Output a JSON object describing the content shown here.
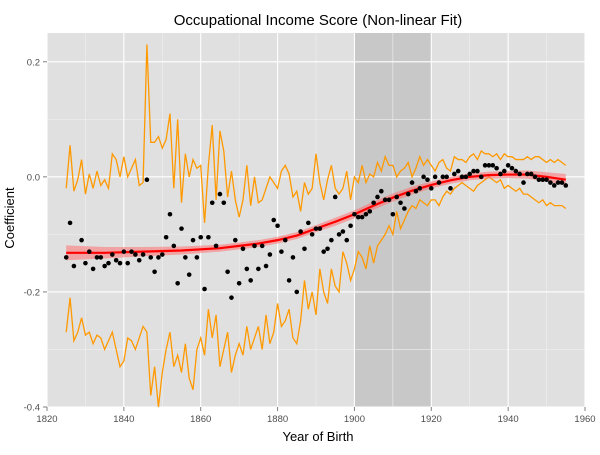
{
  "chart_data": {
    "type": "scatter",
    "title": "Occupational Income Score (Non-linear Fit)",
    "xlabel": "Year of Birth",
    "ylabel": "Coefficient",
    "xlim": [
      1820,
      1960
    ],
    "ylim": [
      -0.4,
      0.25
    ],
    "x_ticks": [
      1820,
      1840,
      1860,
      1880,
      1900,
      1920,
      1940,
      1960
    ],
    "y_ticks": [
      -0.4,
      -0.2,
      0.0,
      0.2
    ],
    "x_tick_labels": [
      "1820",
      "1840",
      "1860",
      "1880",
      "1900",
      "1920",
      "1940",
      "1960"
    ],
    "y_tick_labels": [
      "-0.4",
      "-0.2",
      "0.0",
      "0.2"
    ],
    "grid": true,
    "shaded_region": {
      "x0": 1900,
      "x1": 1920
    },
    "colors": {
      "panel": "#e0e0e0",
      "shade": "#c8c8c8",
      "grid": "#ffffff",
      "points": "#000000",
      "ci_lines": "#ff9900",
      "fit_line": "#ff0000",
      "fit_band": "#ff7070"
    },
    "series": [
      {
        "kind": "points",
        "x": [
          1825,
          1826,
          1827,
          1829,
          1830,
          1831,
          1832,
          1833,
          1834,
          1835,
          1836,
          1837,
          1838,
          1839,
          1840,
          1841,
          1842,
          1843,
          1844,
          1845,
          1846,
          1847,
          1848,
          1849,
          1850,
          1851,
          1852,
          1853,
          1854,
          1855,
          1856,
          1857,
          1858,
          1859,
          1860,
          1861,
          1862,
          1863,
          1864,
          1865,
          1866,
          1867,
          1868,
          1869,
          1870,
          1871,
          1872,
          1873,
          1874,
          1875,
          1876,
          1877,
          1878,
          1879,
          1880,
          1881,
          1882,
          1883,
          1884,
          1885,
          1886,
          1887,
          1888,
          1889,
          1890,
          1891,
          1892,
          1893,
          1894,
          1895,
          1896,
          1897,
          1898,
          1899,
          1900,
          1901,
          1902,
          1903,
          1904,
          1905,
          1906,
          1907,
          1908,
          1909,
          1910,
          1911,
          1912,
          1913,
          1914,
          1915,
          1916,
          1917,
          1918,
          1919,
          1920,
          1921,
          1922,
          1923,
          1924,
          1925,
          1926,
          1927,
          1928,
          1929,
          1930,
          1931,
          1932,
          1933,
          1934,
          1935,
          1936,
          1937,
          1938,
          1939,
          1940,
          1941,
          1942,
          1943,
          1944,
          1945,
          1946,
          1947,
          1948,
          1949,
          1950,
          1951,
          1952,
          1953,
          1954,
          1955
        ],
        "y": [
          -0.14,
          -0.08,
          -0.155,
          -0.11,
          -0.15,
          -0.13,
          -0.16,
          -0.14,
          -0.14,
          -0.155,
          -0.15,
          -0.135,
          -0.145,
          -0.15,
          -0.13,
          -0.15,
          -0.13,
          -0.135,
          -0.145,
          -0.135,
          -0.005,
          -0.14,
          -0.165,
          -0.14,
          -0.135,
          -0.105,
          -0.065,
          -0.12,
          -0.185,
          -0.09,
          -0.14,
          -0.17,
          -0.11,
          -0.14,
          -0.105,
          -0.195,
          -0.105,
          -0.045,
          -0.12,
          -0.03,
          -0.045,
          -0.165,
          -0.21,
          -0.11,
          -0.185,
          -0.125,
          -0.16,
          -0.18,
          -0.12,
          -0.16,
          -0.12,
          -0.155,
          -0.135,
          -0.075,
          -0.085,
          -0.13,
          -0.11,
          -0.18,
          -0.14,
          -0.2,
          -0.095,
          -0.125,
          -0.08,
          -0.1,
          -0.09,
          -0.09,
          -0.13,
          -0.125,
          -0.11,
          -0.035,
          -0.1,
          -0.095,
          -0.11,
          -0.085,
          -0.065,
          -0.07,
          -0.07,
          -0.065,
          -0.06,
          -0.045,
          -0.035,
          -0.025,
          -0.04,
          -0.04,
          -0.065,
          -0.035,
          -0.045,
          -0.055,
          -0.03,
          -0.01,
          -0.025,
          -0.02,
          0.0,
          -0.005,
          -0.02,
          0.0,
          -0.01,
          0.0,
          0.0,
          -0.02,
          0.005,
          0.01,
          0.0,
          0.0,
          0.005,
          0.01,
          0.01,
          0.0,
          0.02,
          0.02,
          0.02,
          0.015,
          0.005,
          0.01,
          0.02,
          0.015,
          0.01,
          0.005,
          -0.01,
          0.005,
          0.005,
          0.0,
          -0.005,
          -0.005,
          -0.005,
          -0.01,
          -0.015,
          -0.01,
          -0.01,
          -0.015
        ]
      },
      {
        "kind": "upper_ci",
        "x": [
          1825,
          1826,
          1827,
          1828,
          1829,
          1830,
          1831,
          1832,
          1833,
          1834,
          1835,
          1836,
          1837,
          1838,
          1839,
          1840,
          1841,
          1842,
          1843,
          1844,
          1845,
          1846,
          1847,
          1848,
          1849,
          1850,
          1851,
          1852,
          1853,
          1854,
          1855,
          1856,
          1857,
          1858,
          1859,
          1860,
          1861,
          1862,
          1863,
          1864,
          1865,
          1866,
          1867,
          1868,
          1869,
          1870,
          1871,
          1872,
          1873,
          1874,
          1875,
          1876,
          1877,
          1878,
          1879,
          1880,
          1881,
          1882,
          1883,
          1884,
          1885,
          1886,
          1887,
          1888,
          1889,
          1890,
          1891,
          1892,
          1893,
          1894,
          1895,
          1896,
          1897,
          1898,
          1899,
          1900,
          1901,
          1902,
          1903,
          1904,
          1905,
          1906,
          1907,
          1908,
          1909,
          1910,
          1911,
          1912,
          1913,
          1914,
          1915,
          1916,
          1917,
          1918,
          1919,
          1920,
          1921,
          1922,
          1923,
          1924,
          1925,
          1926,
          1927,
          1928,
          1929,
          1930,
          1931,
          1932,
          1933,
          1934,
          1935,
          1936,
          1937,
          1938,
          1939,
          1940,
          1941,
          1942,
          1943,
          1944,
          1945,
          1946,
          1947,
          1948,
          1949,
          1950,
          1951,
          1952,
          1953,
          1954,
          1955
        ],
        "y": [
          -0.02,
          0.055,
          -0.025,
          -0.005,
          0.03,
          -0.03,
          0.005,
          -0.02,
          0.01,
          -0.015,
          -0.005,
          -0.02,
          0.04,
          0.03,
          0.0,
          0.035,
          0.0,
          0.015,
          0.03,
          -0.015,
          -0.01,
          0.23,
          0.06,
          0.06,
          0.07,
          0.05,
          0.065,
          0.11,
          -0.02,
          0.1,
          -0.045,
          0.04,
          0.0,
          0.03,
          0.015,
          0.02,
          -0.08,
          0.02,
          0.09,
          -0.04,
          0.08,
          0.045,
          -0.035,
          0.01,
          -0.04,
          -0.07,
          -0.04,
          0.02,
          -0.05,
          0.0,
          -0.045,
          -0.04,
          -0.02,
          0.0,
          -0.01,
          -0.02,
          0.01,
          0.02,
          0.005,
          -0.035,
          -0.025,
          -0.06,
          -0.01,
          -0.03,
          -0.02,
          0.04,
          -0.01,
          -0.04,
          -0.005,
          0.02,
          -0.02,
          -0.03,
          -0.02,
          0.01,
          -0.04,
          0.0,
          -0.01,
          0.02,
          -0.01,
          0.005,
          0.0,
          0.025,
          0.01,
          0.035,
          0.02,
          0.02,
          0.0,
          0.01,
          0.015,
          0.025,
          0.0,
          0.015,
          0.035,
          0.02,
          0.03,
          0.02,
          0.01,
          0.025,
          0.03,
          0.015,
          0.01,
          0.035,
          0.03,
          0.03,
          0.025,
          0.035,
          0.04,
          0.03,
          0.045,
          0.04,
          0.04,
          0.035,
          0.04,
          0.03,
          0.04,
          0.035,
          0.035,
          0.03,
          0.03,
          0.03,
          0.035,
          0.03,
          0.035,
          0.035,
          0.03,
          0.025,
          0.03,
          0.025,
          0.03,
          0.025,
          0.02
        ]
      },
      {
        "kind": "lower_ci",
        "x": [
          1825,
          1826,
          1827,
          1828,
          1829,
          1830,
          1831,
          1832,
          1833,
          1834,
          1835,
          1836,
          1837,
          1838,
          1839,
          1840,
          1841,
          1842,
          1843,
          1844,
          1845,
          1846,
          1847,
          1848,
          1849,
          1850,
          1851,
          1852,
          1853,
          1854,
          1855,
          1856,
          1857,
          1858,
          1859,
          1860,
          1861,
          1862,
          1863,
          1864,
          1865,
          1866,
          1867,
          1868,
          1869,
          1870,
          1871,
          1872,
          1873,
          1874,
          1875,
          1876,
          1877,
          1878,
          1879,
          1880,
          1881,
          1882,
          1883,
          1884,
          1885,
          1886,
          1887,
          1888,
          1889,
          1890,
          1891,
          1892,
          1893,
          1894,
          1895,
          1896,
          1897,
          1898,
          1899,
          1900,
          1901,
          1902,
          1903,
          1904,
          1905,
          1906,
          1907,
          1908,
          1909,
          1910,
          1911,
          1912,
          1913,
          1914,
          1915,
          1916,
          1917,
          1918,
          1919,
          1920,
          1921,
          1922,
          1923,
          1924,
          1925,
          1926,
          1927,
          1928,
          1929,
          1930,
          1931,
          1932,
          1933,
          1934,
          1935,
          1936,
          1937,
          1938,
          1939,
          1940,
          1941,
          1942,
          1943,
          1944,
          1945,
          1946,
          1947,
          1948,
          1949,
          1950,
          1951,
          1952,
          1953,
          1954,
          1955
        ],
        "y": [
          -0.27,
          -0.21,
          -0.285,
          -0.27,
          -0.245,
          -0.275,
          -0.27,
          -0.29,
          -0.275,
          -0.28,
          -0.3,
          -0.285,
          -0.27,
          -0.3,
          -0.33,
          -0.32,
          -0.28,
          -0.285,
          -0.3,
          -0.28,
          -0.26,
          -0.27,
          -0.38,
          -0.33,
          -0.4,
          -0.34,
          -0.3,
          -0.27,
          -0.33,
          -0.31,
          -0.34,
          -0.29,
          -0.35,
          -0.37,
          -0.3,
          -0.28,
          -0.31,
          -0.23,
          -0.28,
          -0.24,
          -0.33,
          -0.3,
          -0.27,
          -0.34,
          -0.31,
          -0.29,
          -0.31,
          -0.26,
          -0.3,
          -0.28,
          -0.26,
          -0.3,
          -0.24,
          -0.29,
          -0.27,
          -0.22,
          -0.26,
          -0.25,
          -0.23,
          -0.28,
          -0.29,
          -0.25,
          -0.18,
          -0.23,
          -0.2,
          -0.24,
          -0.16,
          -0.2,
          -0.22,
          -0.16,
          -0.19,
          -0.2,
          -0.13,
          -0.15,
          -0.18,
          -0.16,
          -0.13,
          -0.14,
          -0.16,
          -0.12,
          -0.15,
          -0.12,
          -0.11,
          -0.1,
          -0.085,
          -0.1,
          -0.06,
          -0.09,
          -0.075,
          -0.06,
          -0.05,
          -0.055,
          -0.04,
          -0.045,
          -0.05,
          -0.04,
          -0.04,
          -0.05,
          -0.035,
          -0.025,
          -0.03,
          -0.02,
          -0.015,
          -0.01,
          -0.015,
          -0.02,
          -0.025,
          -0.015,
          -0.01,
          -0.005,
          0.0,
          -0.005,
          -0.01,
          -0.005,
          -0.02,
          -0.015,
          -0.02,
          -0.025,
          -0.02,
          -0.03,
          -0.03,
          -0.035,
          -0.04,
          -0.045,
          -0.04,
          -0.05,
          -0.045,
          -0.05,
          -0.05,
          -0.05,
          -0.055
        ]
      },
      {
        "kind": "fit",
        "x": [
          1825,
          1835,
          1845,
          1855,
          1865,
          1870,
          1875,
          1880,
          1885,
          1890,
          1895,
          1900,
          1905,
          1910,
          1915,
          1920,
          1925,
          1930,
          1935,
          1940,
          1945,
          1950,
          1955
        ],
        "y": [
          -0.132,
          -0.132,
          -0.13,
          -0.128,
          -0.124,
          -0.12,
          -0.116,
          -0.11,
          -0.102,
          -0.09,
          -0.078,
          -0.065,
          -0.05,
          -0.036,
          -0.024,
          -0.014,
          -0.006,
          0.0,
          0.003,
          0.004,
          0.004,
          0.0,
          -0.005
        ],
        "band_halfwidth": [
          0.013,
          0.01,
          0.008,
          0.007,
          0.006,
          0.006,
          0.006,
          0.006,
          0.006,
          0.006,
          0.007,
          0.007,
          0.007,
          0.007,
          0.007,
          0.006,
          0.006,
          0.006,
          0.006,
          0.006,
          0.007,
          0.008,
          0.01
        ]
      }
    ]
  }
}
